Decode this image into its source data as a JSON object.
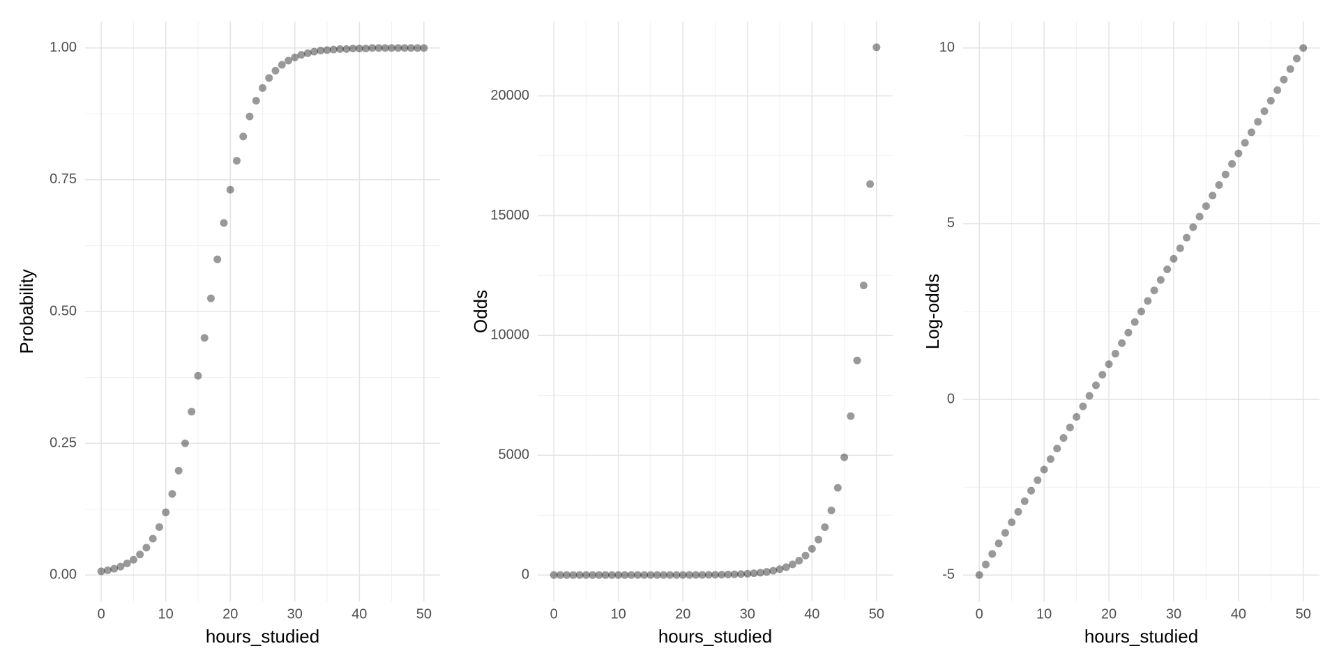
{
  "chart_data": [
    {
      "type": "scatter",
      "xlabel": "hours_studied",
      "ylabel": "Probability",
      "x": [
        0,
        1,
        2,
        3,
        4,
        5,
        6,
        7,
        8,
        9,
        10,
        11,
        12,
        13,
        14,
        15,
        16,
        17,
        18,
        19,
        20,
        21,
        22,
        23,
        24,
        25,
        26,
        27,
        28,
        29,
        30,
        31,
        32,
        33,
        34,
        35,
        36,
        37,
        38,
        39,
        40,
        41,
        42,
        43,
        44,
        45,
        46,
        47,
        48,
        49,
        50
      ],
      "values": [
        0.007,
        0.009,
        0.012,
        0.016,
        0.022,
        0.029,
        0.039,
        0.052,
        0.069,
        0.091,
        0.119,
        0.154,
        0.198,
        0.25,
        0.31,
        0.378,
        0.45,
        0.525,
        0.599,
        0.668,
        0.731,
        0.786,
        0.832,
        0.87,
        0.9,
        0.924,
        0.943,
        0.957,
        0.968,
        0.976,
        0.982,
        0.987,
        0.99,
        0.993,
        0.995,
        0.996,
        0.997,
        0.998,
        0.998,
        0.999,
        0.999,
        0.999,
        1.0,
        1.0,
        1.0,
        1.0,
        1.0,
        1.0,
        1.0,
        1.0,
        1.0
      ],
      "xlim": [
        -2.5,
        52.5
      ],
      "ylim": [
        -0.05,
        1.05
      ],
      "xticks": [
        0,
        10,
        20,
        30,
        40,
        50
      ],
      "yticks": [
        {
          "value": 0,
          "label": "0.00"
        },
        {
          "value": 0.25,
          "label": "0.25"
        },
        {
          "value": 0.5,
          "label": "0.50"
        },
        {
          "value": 0.75,
          "label": "0.75"
        },
        {
          "value": 1,
          "label": "1.00"
        }
      ],
      "color": "#000000",
      "alpha": 0.4,
      "grid": true
    },
    {
      "type": "scatter",
      "xlabel": "hours_studied",
      "ylabel": "Odds",
      "x": [
        0,
        1,
        2,
        3,
        4,
        5,
        6,
        7,
        8,
        9,
        10,
        11,
        12,
        13,
        14,
        15,
        16,
        17,
        18,
        19,
        20,
        21,
        22,
        23,
        24,
        25,
        26,
        27,
        28,
        29,
        30,
        31,
        32,
        33,
        34,
        35,
        36,
        37,
        38,
        39,
        40,
        41,
        42,
        43,
        44,
        45,
        46,
        47,
        48,
        49,
        50
      ],
      "values": [
        0.007,
        0.009,
        0.012,
        0.017,
        0.022,
        0.03,
        0.041,
        0.055,
        0.074,
        0.1,
        0.135,
        0.183,
        0.247,
        0.333,
        0.449,
        0.607,
        0.819,
        1.105,
        1.492,
        2.014,
        2.718,
        3.669,
        4.953,
        6.686,
        9.025,
        12.18,
        16.44,
        22.2,
        29.96,
        40.45,
        54.6,
        73.7,
        99.48,
        134.3,
        181.3,
        244.7,
        330.3,
        445.9,
        601.8,
        812.4,
        1096.6,
        1480.3,
        1998.2,
        2697.3,
        3641,
        4914.8,
        6634.2,
        8955.3,
        12088.4,
        16317.6,
        22026.5
      ],
      "xlim": [
        -2.5,
        52.5
      ],
      "ylim": [
        -1100,
        23100
      ],
      "xticks": [
        0,
        10,
        20,
        30,
        40,
        50
      ],
      "yticks": [
        0,
        5000,
        10000,
        15000,
        20000
      ],
      "color": "#000000",
      "alpha": 0.4,
      "grid": true
    },
    {
      "type": "scatter",
      "xlabel": "hours_studied",
      "ylabel": "Log-odds",
      "x": [
        0,
        1,
        2,
        3,
        4,
        5,
        6,
        7,
        8,
        9,
        10,
        11,
        12,
        13,
        14,
        15,
        16,
        17,
        18,
        19,
        20,
        21,
        22,
        23,
        24,
        25,
        26,
        27,
        28,
        29,
        30,
        31,
        32,
        33,
        34,
        35,
        36,
        37,
        38,
        39,
        40,
        41,
        42,
        43,
        44,
        45,
        46,
        47,
        48,
        49,
        50
      ],
      "values": [
        -5,
        -4.7,
        -4.4,
        -4.1,
        -3.8,
        -3.5,
        -3.2,
        -2.9,
        -2.6,
        -2.3,
        -2,
        -1.7,
        -1.4,
        -1.1,
        -0.8,
        -0.5,
        -0.2,
        0.1,
        0.4,
        0.7,
        1,
        1.3,
        1.6,
        1.9,
        2.2,
        2.5,
        2.8,
        3.1,
        3.4,
        3.7,
        4,
        4.3,
        4.6,
        4.9,
        5.2,
        5.5,
        5.8,
        6.1,
        6.4,
        6.7,
        7,
        7.3,
        7.6,
        7.9,
        8.2,
        8.5,
        8.8,
        9.1,
        9.4,
        9.7,
        10
      ],
      "xlim": [
        -2.5,
        52.5
      ],
      "ylim": [
        -5.75,
        10.75
      ],
      "xticks": [
        0,
        10,
        20,
        30,
        40,
        50
      ],
      "yticks": [
        -5,
        0,
        5,
        10
      ],
      "color": "#000000",
      "alpha": 0.4,
      "grid": true
    }
  ]
}
